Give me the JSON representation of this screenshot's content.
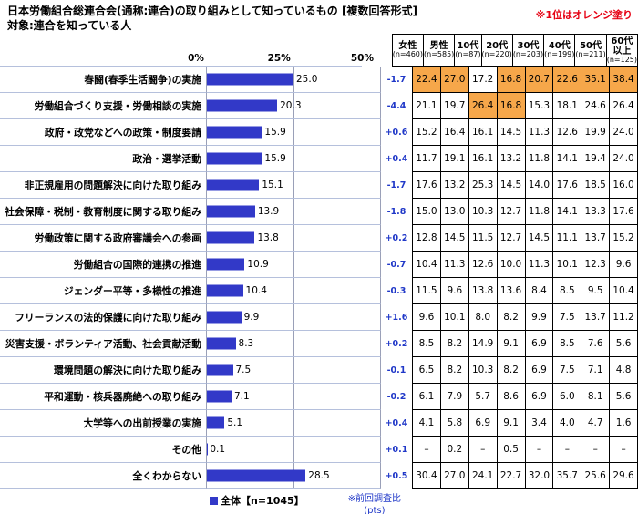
{
  "header": {
    "title": "日本労働組合総連合会(通称:連合)の取り組みとして知っているもの [複数回答形式]",
    "subtitle": "対象:連合を知っている人",
    "note": "※1位はオレンジ塗り"
  },
  "legend": {
    "label": "全体【n=1045】"
  },
  "footnote": {
    "line1": "※前回調査比",
    "line2": "(pts)"
  },
  "colors": {
    "bar": "#3239c8",
    "highlight": "#f6a74a",
    "change_text": "#2038c8",
    "note_red": "#e60012"
  },
  "chart_data": {
    "type": "bar",
    "title": "日本労働組合総連合会(通称:連合)の取り組みとして知っているもの [複数回答形式]",
    "subtitle": "対象:連合を知っている人",
    "unit": "%",
    "xlim": [
      0,
      50
    ],
    "ticks": [
      "0%",
      "25%",
      "50%"
    ],
    "legend": "全体【n=1045】",
    "highlight_rule": "1位はオレンジ塗り",
    "categories": [
      "春闘(春季生活闘争)の実施",
      "労働組合づくり支援・労働相談の実施",
      "政府・政党などへの政策・制度要請",
      "政治・選挙活動",
      "非正規雇用の問題解決に向けた取り組み",
      "社会保障・税制・教育制度に関する取り組み",
      "労働政策に関する政府審議会への参画",
      "労働組合の国際的連携の推進",
      "ジェンダー平等・多様性の推進",
      "フリーランスの法的保護に向けた取り組み",
      "災害支援・ボランティア活動、社会貢献活動",
      "環境問題の解決に向けた取り組み",
      "平和運動・核兵器廃絶への取り組み",
      "大学等への出前授業の実施",
      "その他",
      "全くわからない"
    ],
    "values": [
      25.0,
      20.3,
      15.9,
      15.9,
      15.1,
      13.9,
      13.8,
      10.9,
      10.4,
      9.9,
      8.3,
      7.5,
      7.1,
      5.1,
      0.1,
      28.5
    ],
    "changes_pts": [
      "-1.7",
      "-4.4",
      "+0.6",
      "+0.4",
      "-1.7",
      "-1.8",
      "+0.2",
      "-0.7",
      "-0.3",
      "+1.6",
      "+0.2",
      "-0.1",
      "-0.2",
      "+0.4",
      "+0.1",
      "+0.5"
    ],
    "columns": [
      {
        "label": "女性",
        "n": "(n=460)"
      },
      {
        "label": "男性",
        "n": "(n=585)"
      },
      {
        "label": "10代",
        "n": "(n=87)"
      },
      {
        "label": "20代",
        "n": "(n=220)"
      },
      {
        "label": "30代",
        "n": "(n=203)"
      },
      {
        "label": "40代",
        "n": "(n=199)"
      },
      {
        "label": "50代",
        "n": "(n=211)"
      },
      {
        "label": "60代以上",
        "n": "(n=125)"
      }
    ],
    "table": [
      [
        "22.4",
        "27.0",
        "17.2",
        "16.8",
        "20.7",
        "22.6",
        "35.1",
        "38.4"
      ],
      [
        "21.1",
        "19.7",
        "26.4",
        "16.8",
        "15.3",
        "18.1",
        "24.6",
        "26.4"
      ],
      [
        "15.2",
        "16.4",
        "16.1",
        "14.5",
        "11.3",
        "12.6",
        "19.9",
        "24.0"
      ],
      [
        "11.7",
        "19.1",
        "16.1",
        "13.2",
        "11.8",
        "14.1",
        "19.4",
        "24.0"
      ],
      [
        "17.6",
        "13.2",
        "25.3",
        "14.5",
        "14.0",
        "17.6",
        "18.5",
        "16.0"
      ],
      [
        "15.0",
        "13.0",
        "10.3",
        "12.7",
        "11.8",
        "14.1",
        "13.3",
        "17.6"
      ],
      [
        "12.8",
        "14.5",
        "11.5",
        "12.7",
        "14.5",
        "11.1",
        "13.7",
        "15.2"
      ],
      [
        "10.4",
        "11.3",
        "12.6",
        "10.0",
        "11.3",
        "10.1",
        "12.3",
        "9.6"
      ],
      [
        "11.5",
        "9.6",
        "13.8",
        "13.6",
        "8.4",
        "8.5",
        "9.5",
        "10.4"
      ],
      [
        "9.6",
        "10.1",
        "8.0",
        "8.2",
        "9.9",
        "7.5",
        "13.7",
        "11.2"
      ],
      [
        "8.5",
        "8.2",
        "14.9",
        "9.1",
        "6.9",
        "8.5",
        "7.6",
        "5.6"
      ],
      [
        "6.5",
        "8.2",
        "10.3",
        "8.2",
        "6.9",
        "7.5",
        "7.1",
        "4.8"
      ],
      [
        "6.1",
        "7.9",
        "5.7",
        "8.6",
        "6.9",
        "6.0",
        "8.1",
        "5.6"
      ],
      [
        "4.1",
        "5.8",
        "6.9",
        "9.1",
        "3.4",
        "4.0",
        "4.7",
        "1.6"
      ],
      [
        "–",
        "0.2",
        "–",
        "0.5",
        "–",
        "–",
        "–",
        "–"
      ],
      [
        "30.4",
        "27.0",
        "24.1",
        "22.7",
        "32.0",
        "35.7",
        "25.6",
        "29.6"
      ]
    ],
    "orange_cells": [
      [
        0,
        0
      ],
      [
        0,
        1
      ],
      [
        0,
        3
      ],
      [
        0,
        4
      ],
      [
        0,
        5
      ],
      [
        0,
        6
      ],
      [
        0,
        7
      ],
      [
        1,
        2
      ],
      [
        1,
        3
      ]
    ]
  }
}
